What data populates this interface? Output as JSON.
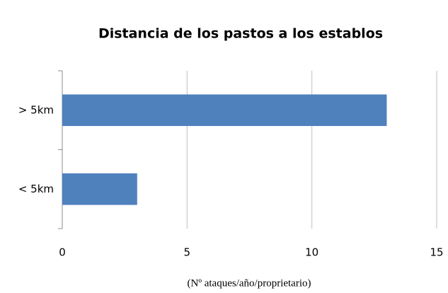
{
  "chart_data": {
    "type": "bar",
    "orientation": "horizontal",
    "title": "Distancia de los pastos a los establos",
    "x_label": "(Nº ataques/año/proprietario)",
    "categories": [
      "> 5km",
      "< 5km"
    ],
    "values": [
      13,
      3
    ],
    "color": "#4f81bd",
    "xlim": [
      0,
      15
    ],
    "xticks": [
      0,
      5,
      10,
      15
    ],
    "grid": true
  }
}
